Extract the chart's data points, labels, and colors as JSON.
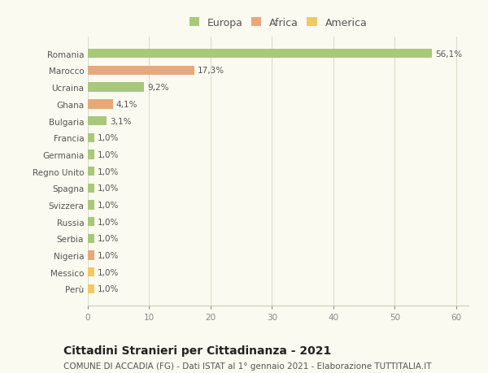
{
  "categories": [
    "Romania",
    "Marocco",
    "Ucraina",
    "Ghana",
    "Bulgaria",
    "Francia",
    "Germania",
    "Regno Unito",
    "Spagna",
    "Svizzera",
    "Russia",
    "Serbia",
    "Nigeria",
    "Messico",
    "Perù"
  ],
  "values": [
    56.1,
    17.3,
    9.2,
    4.1,
    3.1,
    1.0,
    1.0,
    1.0,
    1.0,
    1.0,
    1.0,
    1.0,
    1.0,
    1.0,
    1.0
  ],
  "labels": [
    "56,1%",
    "17,3%",
    "9,2%",
    "4,1%",
    "3,1%",
    "1,0%",
    "1,0%",
    "1,0%",
    "1,0%",
    "1,0%",
    "1,0%",
    "1,0%",
    "1,0%",
    "1,0%",
    "1,0%"
  ],
  "colors": [
    "#a8c87a",
    "#e8a87c",
    "#a8c87a",
    "#e8a87c",
    "#a8c87a",
    "#a8c87a",
    "#a8c87a",
    "#a8c87a",
    "#a8c87a",
    "#a8c87a",
    "#a8c87a",
    "#a8c87a",
    "#e8a87c",
    "#f0c864",
    "#f0c864"
  ],
  "legend_labels": [
    "Europa",
    "Africa",
    "America"
  ],
  "legend_colors": [
    "#a8c87a",
    "#e8a87c",
    "#f0c864"
  ],
  "title": "Cittadini Stranieri per Cittadinanza - 2021",
  "subtitle": "COMUNE DI ACCADIA (FG) - Dati ISTAT al 1° gennaio 2021 - Elaborazione TUTTITALIA.IT",
  "xlim": [
    0,
    62
  ],
  "xticks": [
    0,
    10,
    20,
    30,
    40,
    50,
    60
  ],
  "bg_color": "#fafaf0",
  "bar_height": 0.55,
  "label_fontsize": 7.5,
  "tick_fontsize": 7.5,
  "title_fontsize": 10,
  "subtitle_fontsize": 7.5
}
